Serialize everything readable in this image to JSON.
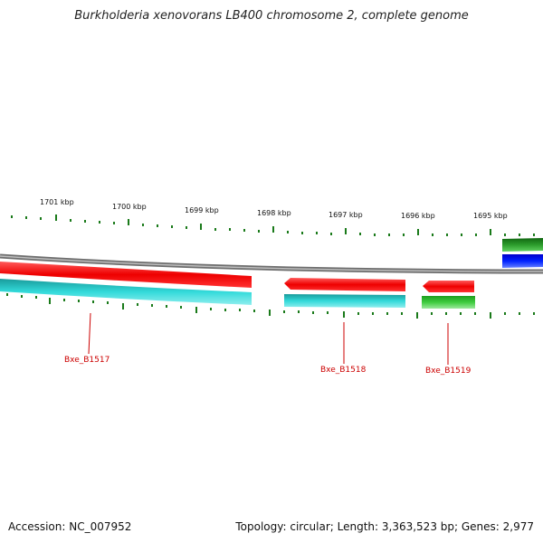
{
  "title": "Burkholderia xenovorans LB400 chromosome 2, complete genome",
  "footer": {
    "accession": "Accession: NC_007952",
    "summary": "Topology: circular; Length: 3,363,523 bp; Genes: 2,977"
  },
  "ruler_labels": [
    "1701 kbp",
    "1700 kbp",
    "1699 kbp",
    "1698 kbp",
    "1697 kbp",
    "1696 kbp",
    "1695 kbp"
  ],
  "gene_labels": [
    "Bxe_B1517",
    "Bxe_B1518",
    "Bxe_B1519"
  ],
  "colors": {
    "backbone": "#888888",
    "forward_cds": "#ff0000",
    "cds_cyan": "#22cccc",
    "cds_green": "#33bb33",
    "cds_dark_green": "#1a8a1a",
    "cds_blue": "#0011ee",
    "ticks": "#1a7a1a",
    "label": "#cc0000"
  }
}
